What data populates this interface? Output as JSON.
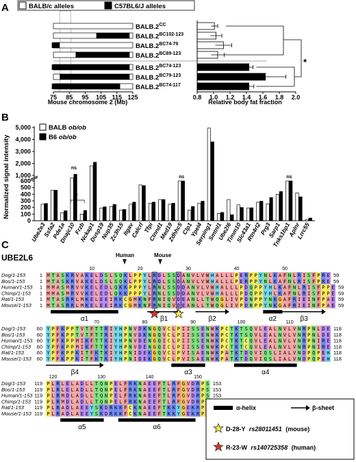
{
  "panels": {
    "a": "A",
    "b": "B",
    "c": "C"
  },
  "panelA": {
    "legend": {
      "white": "BALB/c alleles",
      "black": "C57BL6/J alleles"
    },
    "strains": [
      {
        "label": "BALB.2",
        "sup": "CC",
        "segs": [],
        "mean": 1.01,
        "err": 0.04
      },
      {
        "label": "BALB.2",
        "sup": "BC102-123",
        "segs": [
          [
            102,
            123
          ]
        ],
        "mean": 1.03,
        "err": 0.07
      },
      {
        "label": "BALB.2",
        "sup": "BC74-79",
        "segs": [
          [
            74,
            79
          ]
        ],
        "mean": 1.12,
        "err": 0.1
      },
      {
        "label": "BALB.2",
        "sup": "BC89-123",
        "segs": [
          [
            89,
            123
          ]
        ],
        "mean": 1.05,
        "err": 0.08
      },
      {
        "label": "BALB.2",
        "sup": "BC74-123",
        "segs": [
          [
            74,
            123
          ]
        ],
        "mean": 1.43,
        "err": 0.05
      },
      {
        "label": "BALB.2",
        "sup": "BC79-123",
        "segs": [
          [
            79,
            123
          ]
        ],
        "mean": 1.63,
        "err": 0.25
      },
      {
        "label": "BALB.2",
        "sup": "BC74-117",
        "segs": [
          [
            74,
            117
          ]
        ],
        "mean": 1.43,
        "err": 0.06
      }
    ],
    "chrom_ticks": [
      "75",
      "85",
      "95",
      "105",
      "115",
      "125"
    ],
    "chrom_xlabel": "Mouse chromosome 2 (Mb)",
    "fat_ticks": [
      "0.8",
      "1.0",
      "1.2",
      "1.4",
      "1.6",
      "1.8",
      "2.0"
    ],
    "fat_xlabel": "Relative body fat fraction",
    "sig": "*"
  },
  "panelB": {
    "legend": [
      "BALB ob/ob",
      "B6 ob/ob"
    ],
    "ylabel": "Normalized signal intensity",
    "yticks_top": [
      "5,000",
      "4,000",
      "3,000",
      "2,000",
      "1,000"
    ],
    "yticks_bot": [
      "600",
      "500",
      "400",
      "300",
      "200",
      "100",
      "0"
    ],
    "sig": "*",
    "ns": [
      "ns",
      "ns",
      "ns"
    ]
  },
  "chart_data": {
    "type": "bar",
    "categories": [
      "Ube2e3",
      "Ssfa2",
      "Pde1a",
      "Dnajc10",
      "Frzb",
      "Nckap1",
      "Dusp19",
      "Nup35",
      "Zc3h15",
      "Itgav",
      "Calcrl",
      "Tfpi",
      "Ctnnd1",
      "Med19",
      "Zdhhc5",
      "Clp1",
      "Ypel4",
      "Serping1",
      "Smtnl1",
      "Ube2l6",
      "Timm10",
      "Slc43a1",
      "Rtn4rl2",
      "Prg3",
      "Sarp1",
      "Tnks1bp1",
      "Aplnr",
      "Lrrc55"
    ],
    "series": [
      {
        "name": "BALB ob/ob",
        "values": [
          250,
          460,
          120,
          800,
          100,
          1800,
          190,
          215,
          160,
          250,
          540,
          265,
          320,
          250,
          600,
          160,
          265,
          4950,
          110,
          320,
          240,
          190,
          280,
          255,
          400,
          600,
          420,
          20
        ]
      },
      {
        "name": "B6 ob/ob",
        "values": [
          260,
          460,
          150,
          1100,
          155,
          2100,
          210,
          245,
          170,
          280,
          530,
          280,
          320,
          265,
          600,
          215,
          295,
          3800,
          125,
          90,
          200,
          195,
          295,
          350,
          440,
          600,
          360,
          40
        ]
      }
    ],
    "ylim": [
      0,
      5000
    ]
  },
  "panelC": {
    "gene": "UBE2L6",
    "human": "Human",
    "mouse": "Mouse",
    "names": [
      "Dog/1-153",
      "Bos/1-153",
      "Human/1-153",
      "Chimp/1-153",
      "Rat/1-153",
      "Mouse/1-153"
    ],
    "blocks": [
      {
        "start": "1",
        "end": "59",
        "ticks": [
          "10",
          "20",
          "30",
          "40",
          "50"
        ],
        "seqs": [
          "MTASKRVAKELDSLSQKLPPYLRDLSSDANVLVWHALLLPERPPYNLKAFNLRISFPRE",
          "MTASKRVAKELDSLSQKLPPYLRDLSSDANVLVWHALLLPERPPYNLKAFNLRISFPRE",
          "MMASMRVVKELEDLQKKPPPYLRNLSSDDANVLVWHALLLPDQPPYHLKAFNLRISFPPE",
          "MMASMRVVKELEDLQKKPPPYLRNLSSDDANVLVWHALLLPDQPPYHLKAFNLRISFPPE",
          "MTASRRLMKELEEIRKCGMKNFRNIQVDEANLLTWQGLIVPDNPPYNKGAFRIEINFPAE",
          "MTASRRLMKELEEIRKCGMKNFRNIQVDEANLLTWQGLIVPDNPPYNKGAFRIEINFPAE"
        ],
        "ss": {
          "a1": "α1",
          "b1": "β1",
          "b2": "β2",
          "a2": "α2",
          "b3": "β3"
        }
      },
      {
        "start": "60",
        "end": "118",
        "ticks": [
          "70",
          "80",
          "90",
          "100",
          "110"
        ],
        "seqs": [
          "YPFKPPTVTFTTRIYHPNVDKNGQVCLPIISSENWKPCTKTSQVLEALNVLVNRPNLDE",
          "YPFKPPTVTFTTRIYHPNVDKNGQVCLPIISSENWKPCTKTSQVLEALNVLVNRPNLDE",
          "YPFKPPMIKFTTKIYHPNVDENGQICLPIISSENWKPCTKTCQVLEALNVLVNRPNIRE",
          "YPFKPPMIKFTTKIYHPNVDENGQICLPIISSENWKPCTKTCQVLEALNVLVNRPNIRE",
          "YPFKPPKITFKTKIYHPNIDEKGQVCLPVISAENWKPATKTDQVIQSLIALVNDPQPEH",
          "YPFKPPKITFKTKIYHPNIDEKGQVCLPVISAENWKPATKTDQVIQSLIALVNDPQPEH"
        ],
        "ss": {
          "b4": "β4",
          "a3": "α3",
          "a4": "α4"
        }
      },
      {
        "start": "119",
        "end": "153",
        "ticks": [
          "120",
          "130",
          "140",
          "150"
        ],
        "seqs": [
          "PLRLELADLLTQNPELFRKNAEEFTLRFGVDRPS",
          "PLRLELADLLTQNPELFRKNAEEFTLRFGVDRPS",
          "PLRMDLADLLTQNPELFRKNAEEFTLRFGVDRPS",
          "PLRMDLADLLTQNPELFRKNAEEFTLRFGVDRPS",
          "PLRADLAEEYSKDRKKFCKNAEEFTKKYGEKRPV",
          "PLRADLAEEYSKDRKKFCKNAEEFTKKYGEKRPV"
        ],
        "ss": {
          "a5": "α5",
          "a6": "α6"
        }
      }
    ],
    "legend": {
      "helix": "α-helix",
      "sheet": "β-sheet",
      "snp1": "D-28-Y",
      "snp1id": "rs28011451",
      "snp1tag": "(mouse)",
      "snp2": "R-23-W",
      "snp2id": "rs140725358",
      "snp2tag": "(human)"
    }
  }
}
